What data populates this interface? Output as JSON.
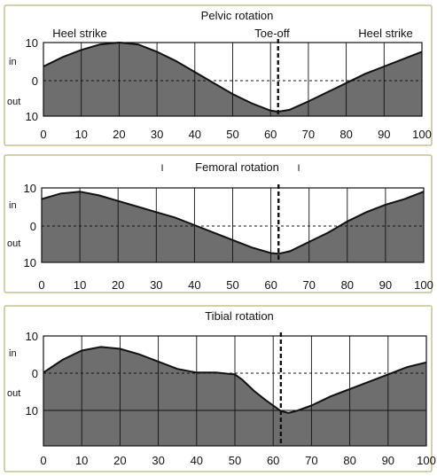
{
  "chart_data": [
    {
      "type": "area",
      "title": "Pelvic rotation",
      "side_labels": [
        "in",
        "out"
      ],
      "xlim": [
        0,
        100
      ],
      "ylim": [
        -10,
        10
      ],
      "x_ticks": [
        "0",
        "10",
        "20",
        "30",
        "40",
        "50",
        "60",
        "70",
        "80",
        "90",
        "100"
      ],
      "y_ticks": [
        "10",
        "0",
        "10"
      ],
      "x": [
        0,
        5,
        10,
        15,
        20,
        25,
        30,
        35,
        40,
        45,
        50,
        55,
        60,
        62,
        65,
        70,
        75,
        80,
        85,
        90,
        95,
        100
      ],
      "values": [
        3.5,
        6,
        8,
        9.5,
        10,
        9.5,
        7.5,
        5,
        2,
        -1,
        -4,
        -6.5,
        -8.5,
        -8.8,
        -8.3,
        -6,
        -3.5,
        -1,
        1.5,
        3.5,
        5.5,
        7.5
      ],
      "toe_off": 62,
      "annotations": [
        "Heel strike",
        "Toe-off",
        "Heel strike"
      ],
      "grid": true
    },
    {
      "type": "area",
      "title": "Femoral rotation",
      "side_labels": [
        "in",
        "out"
      ],
      "title_marks": [
        "I",
        "I"
      ],
      "xlim": [
        0,
        100
      ],
      "ylim": [
        -10,
        10
      ],
      "x_ticks": [
        "0",
        "10",
        "20",
        "30",
        "40",
        "50",
        "60",
        "70",
        "80",
        "90",
        "100"
      ],
      "y_ticks": [
        "10",
        "0",
        "10"
      ],
      "x": [
        0,
        5,
        10,
        15,
        20,
        25,
        30,
        35,
        40,
        45,
        50,
        55,
        60,
        62,
        65,
        70,
        75,
        80,
        85,
        90,
        95,
        100
      ],
      "values": [
        7,
        8.5,
        9,
        8,
        6.5,
        5,
        3.5,
        2,
        0,
        -2,
        -4,
        -6,
        -7.5,
        -7.7,
        -7,
        -4.5,
        -2,
        1,
        3.5,
        5.5,
        7,
        9
      ],
      "toe_off": 62,
      "grid": true
    },
    {
      "type": "area",
      "title": "Tibial rotation",
      "side_labels": [
        "in",
        "out"
      ],
      "xlim": [
        0,
        100
      ],
      "ylim": [
        -20,
        10
      ],
      "x_ticks": [
        "0",
        "10",
        "20",
        "30",
        "40",
        "50",
        "60",
        "70",
        "80",
        "90",
        "100"
      ],
      "y_ticks": [
        "10",
        "0",
        "10"
      ],
      "x": [
        0,
        5,
        10,
        15,
        20,
        25,
        30,
        35,
        40,
        45,
        50,
        52,
        55,
        58,
        60,
        62,
        64,
        66,
        70,
        75,
        80,
        85,
        90,
        95,
        100
      ],
      "values": [
        0,
        3.5,
        6,
        7,
        6.5,
        5,
        3,
        1,
        0,
        0,
        -0.5,
        -2,
        -5,
        -7.5,
        -9,
        -10.5,
        -11,
        -10.5,
        -9,
        -6.5,
        -4.5,
        -2.5,
        -0.5,
        1.5,
        2.8
      ],
      "toe_off": 62,
      "grid": true
    }
  ]
}
